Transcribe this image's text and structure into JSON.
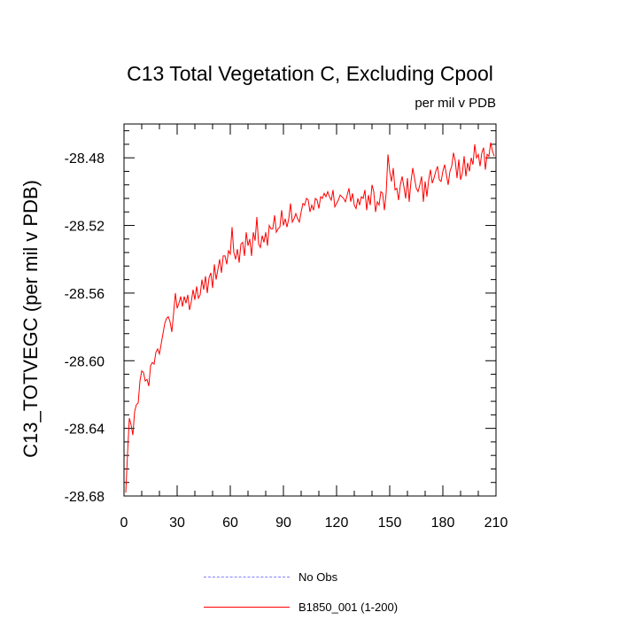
{
  "chart_data": {
    "type": "line",
    "title": "C13 Total Vegetation C, Excluding Cpool",
    "units_label": "per mil v PDB",
    "xlabel": "",
    "ylabel": "C13_TOTVEGC  (per mil v PDB)",
    "xlim": [
      0,
      210
    ],
    "ylim": [
      -28.68,
      -28.46
    ],
    "x_ticks": [
      0,
      30,
      60,
      90,
      120,
      150,
      180,
      210
    ],
    "x_tick_labels": [
      "0",
      "30",
      "60",
      "90",
      "120",
      "150",
      "180",
      "210"
    ],
    "y_ticks": [
      -28.68,
      -28.64,
      -28.6,
      -28.56,
      -28.52,
      -28.48
    ],
    "y_tick_labels": [
      "-28.68",
      "-28.64",
      "-28.60",
      "-28.56",
      "-28.52",
      "-28.48"
    ],
    "series": [
      {
        "name": "B1850_001 (1-200)",
        "color": "#ff0000",
        "style": "solid",
        "x_start": 1,
        "values": [
          -28.678,
          -28.655,
          -28.634,
          -28.638,
          -28.644,
          -28.63,
          -28.626,
          -28.625,
          -28.612,
          -28.606,
          -28.607,
          -28.612,
          -28.611,
          -28.615,
          -28.603,
          -28.601,
          -28.602,
          -28.595,
          -28.593,
          -28.596,
          -28.59,
          -28.584,
          -28.578,
          -28.575,
          -28.574,
          -28.577,
          -28.583,
          -28.572,
          -28.56,
          -28.569,
          -28.566,
          -28.562,
          -28.568,
          -28.562,
          -28.566,
          -28.561,
          -28.57,
          -28.565,
          -28.558,
          -28.564,
          -28.556,
          -28.563,
          -28.561,
          -28.552,
          -28.558,
          -28.55,
          -28.56,
          -28.551,
          -28.548,
          -28.557,
          -28.543,
          -28.552,
          -28.546,
          -28.54,
          -28.548,
          -28.538,
          -28.538,
          -28.543,
          -28.535,
          -28.537,
          -28.521,
          -28.536,
          -28.54,
          -28.534,
          -28.542,
          -28.531,
          -28.53,
          -28.538,
          -28.524,
          -28.532,
          -28.528,
          -28.538,
          -28.524,
          -28.529,
          -28.515,
          -28.531,
          -28.533,
          -28.526,
          -28.53,
          -28.524,
          -28.532,
          -28.52,
          -28.522,
          -28.522,
          -28.514,
          -28.524,
          -28.522,
          -28.521,
          -28.511,
          -28.52,
          -28.516,
          -28.521,
          -28.516,
          -28.507,
          -28.518,
          -28.516,
          -28.513,
          -28.516,
          -28.518,
          -28.512,
          -28.507,
          -28.508,
          -28.504,
          -28.505,
          -28.512,
          -28.508,
          -28.511,
          -28.504,
          -28.505,
          -28.51,
          -28.503,
          -28.504,
          -28.501,
          -28.503,
          -28.5,
          -28.503,
          -28.505,
          -28.499,
          -28.509,
          -28.507,
          -28.505,
          -28.502,
          -28.503,
          -28.504,
          -28.506,
          -28.502,
          -28.498,
          -28.506,
          -28.501,
          -28.508,
          -28.51,
          -28.504,
          -28.508,
          -28.503,
          -28.504,
          -28.499,
          -28.511,
          -28.502,
          -28.508,
          -28.496,
          -28.5,
          -28.512,
          -28.506,
          -28.508,
          -28.5,
          -28.501,
          -28.511,
          -28.501,
          -28.478,
          -28.488,
          -28.494,
          -28.486,
          -28.499,
          -28.498,
          -28.505,
          -28.496,
          -28.491,
          -28.497,
          -28.504,
          -28.492,
          -28.506,
          -28.494,
          -28.486,
          -28.492,
          -28.498,
          -28.5,
          -28.496,
          -28.491,
          -28.506,
          -28.494,
          -28.503,
          -28.493,
          -28.487,
          -28.495,
          -28.492,
          -28.488,
          -28.485,
          -28.493,
          -28.494,
          -28.488,
          -28.484,
          -28.49,
          -28.496,
          -28.488,
          -28.485,
          -28.477,
          -28.482,
          -28.492,
          -28.481,
          -28.493,
          -28.489,
          -28.479,
          -28.491,
          -28.483,
          -28.488,
          -28.48,
          -28.484,
          -28.472,
          -28.48,
          -28.478,
          -28.485,
          -28.477,
          -28.474,
          -28.487,
          -28.478,
          -28.479,
          -28.471,
          -28.476,
          -28.479
        ]
      },
      {
        "name": "No Obs",
        "color": "#8080ff",
        "style": "dashed",
        "values": []
      }
    ]
  }
}
